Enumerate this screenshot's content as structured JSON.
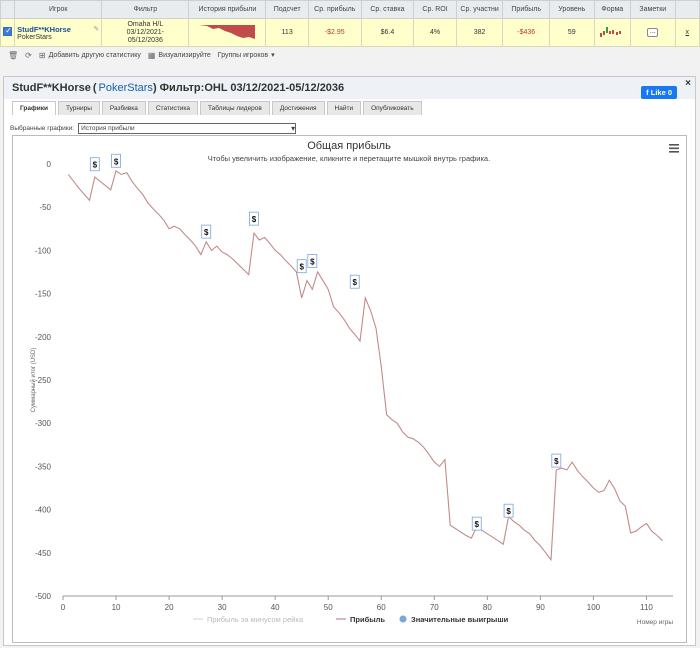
{
  "table": {
    "headers": [
      "",
      "Игрок",
      "Фильтр",
      "История прибыли",
      "Подсчет",
      "Ср. прибыль",
      "Ср. ставка",
      "Ср. ROI",
      "Ср. участни",
      "Прибыль",
      "Уровень",
      "Форма",
      "Заметки",
      ""
    ],
    "row": {
      "player": "StudF**KHorse",
      "site": "PokerStars",
      "filter_line1": "Omaha H/L",
      "filter_line2": "03/12/2021-",
      "filter_line3": "05/12/2036",
      "count": "113",
      "avg_profit": "-$2.95",
      "avg_stake": "$6.4",
      "avg_roi": "4%",
      "avg_entrants": "382",
      "profit": "-$436",
      "level": "59",
      "notes": "...",
      "remove": "x"
    }
  },
  "toolbar": {
    "add_stat": "Добавить другую статистику",
    "visualize": "Визуализируйте",
    "groups": "Группы игроков"
  },
  "panel": {
    "title_player": "StudF**KHorse",
    "title_site": "PokerStars",
    "title_filter": "Фильтр:OHL 03/12/2021-05/12/2036",
    "like": "Like 0",
    "close": "×",
    "tabs": [
      "Графики",
      "Турниры",
      "Разбивка",
      "Статистика",
      "Таблицы лидеров",
      "Достижения",
      "Найти",
      "Опубликовать"
    ],
    "selected_label": "Выбранные графики:",
    "selected_value": "История прибыли"
  },
  "colors": {
    "profit_line": "#c48a8a",
    "rake_line": "#d8d8d8",
    "wins_marker": "#7aa6d8",
    "accent": "#1a5fa8"
  },
  "chart_data": {
    "type": "line",
    "title": "Общая прибыль",
    "subtitle": "Чтобы увеличить изображение, кликните и перетащите мышкой внутрь графика.",
    "xlabel": "Номер игры",
    "ylabel": "Суммарный итог (USD)",
    "xlim": [
      0,
      115
    ],
    "ylim": [
      -500,
      0
    ],
    "xticks": [
      0,
      10,
      20,
      30,
      40,
      50,
      60,
      70,
      80,
      90,
      100,
      110
    ],
    "yticks": [
      0,
      -50,
      -100,
      -150,
      -200,
      -250,
      -300,
      -350,
      -400,
      -450,
      -500
    ],
    "legend_position": "bottom",
    "legend": [
      "Прибыль за минусом рейка",
      "Прибыль",
      "Значительные выигрыши"
    ],
    "series": [
      {
        "name": "Прибыль",
        "x": [
          1,
          2,
          3,
          4,
          5,
          6,
          7,
          8,
          9,
          10,
          11,
          12,
          13,
          14,
          15,
          16,
          17,
          18,
          19,
          20,
          21,
          22,
          23,
          24,
          25,
          26,
          27,
          28,
          29,
          30,
          31,
          32,
          33,
          34,
          35,
          36,
          37,
          38,
          39,
          40,
          41,
          42,
          43,
          44,
          45,
          46,
          47,
          48,
          49,
          50,
          51,
          52,
          53,
          54,
          55,
          56,
          57,
          58,
          59,
          60,
          61,
          62,
          63,
          64,
          65,
          66,
          67,
          68,
          69,
          70,
          71,
          72,
          73,
          74,
          75,
          76,
          77,
          78,
          79,
          80,
          81,
          82,
          83,
          84,
          85,
          86,
          87,
          88,
          89,
          90,
          91,
          92,
          93,
          94,
          95,
          96,
          97,
          98,
          99,
          100,
          101,
          102,
          103,
          104,
          105,
          106,
          107,
          108,
          109,
          110,
          111,
          112,
          113
        ],
        "y": [
          -12,
          -20,
          -28,
          -35,
          -42,
          -15,
          -20,
          -25,
          -30,
          -8,
          -12,
          -10,
          -20,
          -28,
          -35,
          -45,
          -52,
          -58,
          -65,
          -75,
          -72,
          -75,
          -82,
          -88,
          -95,
          -105,
          -90,
          -100,
          -95,
          -102,
          -105,
          -110,
          -116,
          -122,
          -128,
          -80,
          -88,
          -85,
          -92,
          -100,
          -105,
          -112,
          -118,
          -125,
          -155,
          -135,
          -145,
          -125,
          -135,
          -145,
          -165,
          -172,
          -180,
          -190,
          -197,
          -205,
          -155,
          -170,
          -190,
          -235,
          -290,
          -296,
          -300,
          -310,
          -316,
          -318,
          -322,
          -328,
          -336,
          -345,
          -350,
          -342,
          -418,
          -422,
          -426,
          -430,
          -433,
          -420,
          -424,
          -428,
          -432,
          -436,
          -440,
          -408,
          -414,
          -418,
          -424,
          -428,
          -436,
          -442,
          -450,
          -458,
          -354,
          -352,
          -354,
          -345,
          -355,
          -362,
          -368,
          -375,
          -380,
          -378,
          -366,
          -376,
          -390,
          -396,
          -427,
          -425,
          -420,
          -416,
          -425,
          -430,
          -436
        ]
      },
      {
        "name": "Значительные выигрыши",
        "x": [
          6,
          10,
          27,
          36,
          45,
          47,
          55,
          78,
          84,
          93
        ],
        "y": [
          -2,
          2,
          -80,
          -65,
          -120,
          -114,
          -138,
          -418,
          -403,
          -345
        ]
      }
    ]
  }
}
